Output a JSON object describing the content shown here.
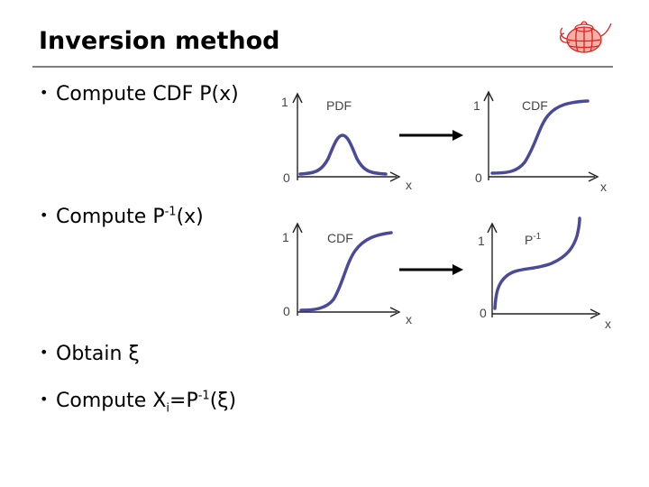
{
  "slide": {
    "title": "Inversion method",
    "bullets": [
      {
        "pre": "Compute CDF P(x)",
        "sup": "",
        "post": "",
        "sub": "",
        "tail": ""
      },
      {
        "pre": "Compute P",
        "sup": "-1",
        "post": "(x)",
        "sub": "",
        "tail": ""
      },
      {
        "pre": "Obtain ξ",
        "sup": "",
        "post": "",
        "sub": "",
        "tail": ""
      },
      {
        "pre": "Compute X",
        "sub": "i",
        "post": "=P",
        "sup": "-1",
        "tail": "(ξ)"
      }
    ]
  },
  "plots": [
    {
      "name": "PDF",
      "sup": "",
      "y_top": "1",
      "y_bottom": "0",
      "x_label": "x"
    },
    {
      "name": "CDF",
      "sup": "",
      "y_top": "1",
      "y_bottom": "0",
      "x_label": "x"
    },
    {
      "name": "CDF",
      "sup": "",
      "y_top": "1",
      "y_bottom": "0",
      "x_label": "x"
    },
    {
      "name": "P",
      "sup": "-1",
      "y_top": "1",
      "y_bottom": "0",
      "x_label": "x"
    }
  ],
  "colors": {
    "curve": "#4a4a9a",
    "logo": "#e0201a",
    "rule": "#7f7f7f"
  },
  "icons": {
    "logo": "teapot-wireframe-icon",
    "arrow": "right-arrow-icon"
  }
}
